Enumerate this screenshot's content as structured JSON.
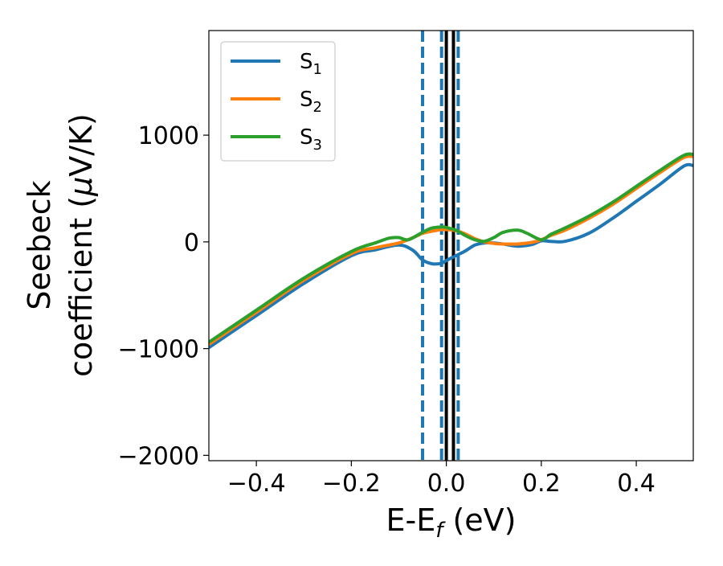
{
  "chart_data": {
    "type": "line",
    "xlabel": "E-E",
    "xlabel_sub": "f",
    "xlabel_unit": " (eV)",
    "ylabel_line1": "Seebeck",
    "ylabel_line2_pre": "coefficient  (",
    "ylabel_mu": "μ",
    "ylabel_line2_post": "V/K)",
    "xlim": [
      -0.5,
      0.52
    ],
    "ylim": [
      -2050,
      1980
    ],
    "xticks": [
      -0.4,
      -0.2,
      0.0,
      0.2,
      0.4
    ],
    "xtick_labels": [
      "−0.4",
      "−0.2",
      "0.0",
      "0.2",
      "0.4"
    ],
    "yticks": [
      -2000,
      -1000,
      0,
      1000
    ],
    "ytick_labels": [
      "−2000",
      "−1000",
      "0",
      "1000"
    ],
    "legend_position": "top-left",
    "series": [
      {
        "name": "S",
        "name_sub": "1",
        "color": "#1f77b4",
        "x": [
          -0.5,
          -0.4,
          -0.3,
          -0.2,
          -0.15,
          -0.1,
          -0.07,
          -0.05,
          -0.03,
          -0.01,
          0.0,
          0.02,
          0.04,
          0.06,
          0.08,
          0.1,
          0.12,
          0.15,
          0.18,
          0.2,
          0.22,
          0.25,
          0.3,
          0.35,
          0.4,
          0.45,
          0.5,
          0.52
        ],
        "y": [
          -990,
          -690,
          -390,
          -130,
          -75,
          -30,
          -80,
          -170,
          -205,
          -200,
          -175,
          -130,
          -85,
          -30,
          -10,
          -10,
          -20,
          -40,
          -25,
          10,
          5,
          5,
          80,
          220,
          380,
          540,
          710,
          715
        ]
      },
      {
        "name": "S",
        "name_sub": "2",
        "color": "#ff7f0e",
        "x": [
          -0.5,
          -0.4,
          -0.3,
          -0.2,
          -0.15,
          -0.1,
          -0.07,
          -0.05,
          -0.03,
          -0.01,
          0.0,
          0.02,
          0.04,
          0.06,
          0.08,
          0.1,
          0.12,
          0.15,
          0.18,
          0.2,
          0.22,
          0.25,
          0.3,
          0.35,
          0.4,
          0.45,
          0.5,
          0.52
        ],
        "y": [
          -960,
          -660,
          -360,
          -110,
          -55,
          -10,
          40,
          80,
          100,
          115,
          115,
          105,
          75,
          30,
          0,
          -15,
          -20,
          -20,
          -5,
          20,
          60,
          110,
          220,
          350,
          500,
          650,
          790,
          800
        ]
      },
      {
        "name": "S",
        "name_sub": "3",
        "color": "#2ca02c",
        "x": [
          -0.5,
          -0.4,
          -0.3,
          -0.2,
          -0.15,
          -0.12,
          -0.1,
          -0.08,
          -0.05,
          -0.03,
          -0.01,
          0.0,
          0.02,
          0.04,
          0.06,
          0.08,
          0.1,
          0.12,
          0.15,
          0.17,
          0.2,
          0.22,
          0.25,
          0.3,
          0.35,
          0.4,
          0.45,
          0.5,
          0.52
        ],
        "y": [
          -940,
          -640,
          -340,
          -90,
          -10,
          35,
          40,
          20,
          90,
          130,
          140,
          135,
          110,
          60,
          20,
          5,
          40,
          90,
          110,
          80,
          20,
          70,
          130,
          240,
          370,
          520,
          670,
          810,
          820
        ]
      }
    ],
    "vlines": [
      {
        "x": -0.05,
        "style": "dashed",
        "color": "#1f77b4"
      },
      {
        "x": -0.01,
        "style": "dashed",
        "color": "#1f77b4"
      },
      {
        "x": 0.0,
        "style": "solid",
        "color": "#000000"
      },
      {
        "x": 0.015,
        "style": "solid",
        "color": "#000000"
      },
      {
        "x": 0.025,
        "style": "dashed",
        "color": "#1f77b4"
      }
    ]
  }
}
